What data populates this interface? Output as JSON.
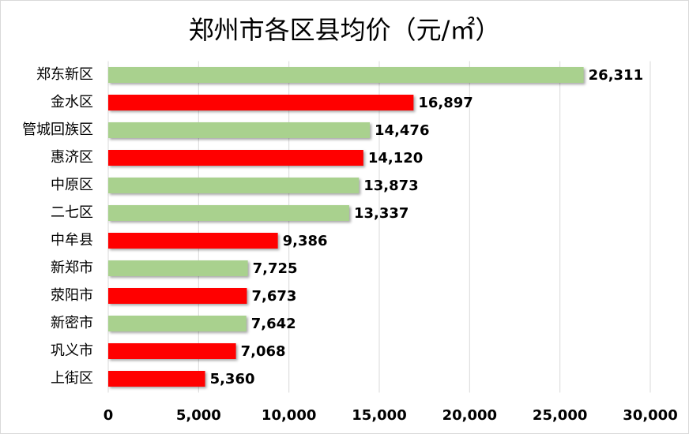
{
  "chart_data": {
    "type": "barh",
    "title": "郑州市各区县均价（元/㎡）",
    "categories": [
      "郑东新区",
      "金水区",
      "管城回族区",
      "惠济区",
      "中原区",
      "二七区",
      "中牟县",
      "新郑市",
      "荥阳市",
      "新密市",
      "巩义市",
      "上街区"
    ],
    "values": [
      26311,
      16897,
      14476,
      14120,
      13873,
      13337,
      9386,
      7725,
      7673,
      7642,
      7068,
      5360
    ],
    "value_labels": [
      "26,311",
      "16,897",
      "14,476",
      "14,120",
      "13,873",
      "13,337",
      "9,386",
      "7,725",
      "7,673",
      "7,642",
      "7,068",
      "5,360"
    ],
    "colors": [
      "#a9d18e",
      "#ff0000",
      "#a9d18e",
      "#ff0000",
      "#a9d18e",
      "#a9d18e",
      "#ff0000",
      "#a9d18e",
      "#ff0000",
      "#a9d18e",
      "#ff0000",
      "#ff0000"
    ],
    "xlim": [
      0,
      30000
    ],
    "xticks": [
      0,
      {
        "value": 5000,
        "label": "5,000"
      },
      {
        "value": 10000,
        "label": "10,000"
      },
      {
        "value": 15000,
        "label": "15,000"
      },
      {
        "value": 20000,
        "label": "20,000"
      },
      {
        "value": 25000,
        "label": "25,000"
      },
      {
        "value": 30000,
        "label": "30,000"
      }
    ],
    "grid": true
  }
}
